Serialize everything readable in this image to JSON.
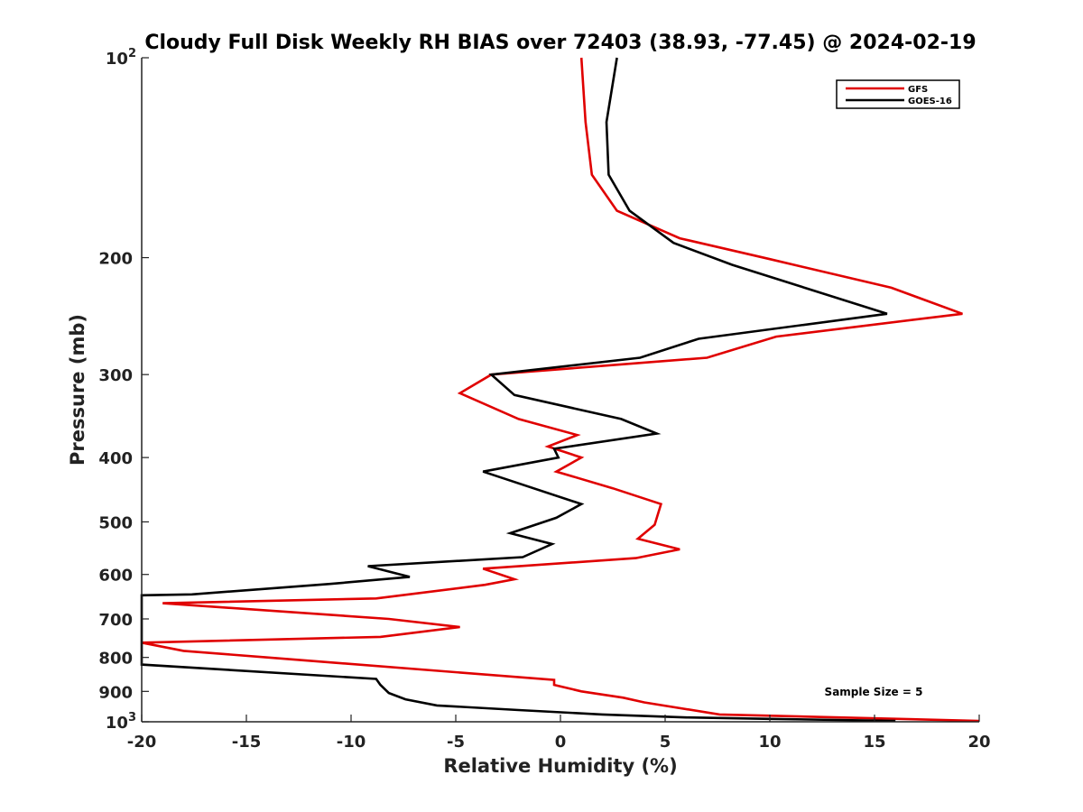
{
  "chart_data": {
    "type": "line",
    "title": "Cloudy Full Disk Weekly RH BIAS over 72403 (38.93, -77.45) @ 2024-02-19",
    "xlabel": "Relative Humidity (%)",
    "ylabel": "Pressure (mb)",
    "xlim": [
      -20,
      20
    ],
    "ylim": [
      100,
      1000
    ],
    "yscale": "log",
    "y_reversed": true,
    "x_ticks": [
      {
        "value": -20,
        "label": "-20"
      },
      {
        "value": -15,
        "label": "-15"
      },
      {
        "value": -10,
        "label": "-10"
      },
      {
        "value": -5,
        "label": "-5"
      },
      {
        "value": 0,
        "label": "0"
      },
      {
        "value": 5,
        "label": "5"
      },
      {
        "value": 10,
        "label": "10"
      },
      {
        "value": 15,
        "label": "15"
      },
      {
        "value": 20,
        "label": "20"
      }
    ],
    "y_ticks": [
      {
        "value": 100,
        "label": "10",
        "sup": "2"
      },
      {
        "value": 200,
        "label": "200"
      },
      {
        "value": 300,
        "label": "300"
      },
      {
        "value": 400,
        "label": "400"
      },
      {
        "value": 500,
        "label": "500"
      },
      {
        "value": 600,
        "label": "600"
      },
      {
        "value": 700,
        "label": "700"
      },
      {
        "value": 800,
        "label": "800"
      },
      {
        "value": 900,
        "label": "900"
      },
      {
        "value": 1000,
        "label": "10",
        "sup": "3"
      }
    ],
    "grid": false,
    "legend_position": "top-right",
    "annotation": "Sample Size = 5",
    "series": [
      {
        "name": "GFS",
        "color": "#e00000",
        "points": [
          [
            1.0,
            100
          ],
          [
            1.2,
            125
          ],
          [
            1.5,
            150
          ],
          [
            2.7,
            170
          ],
          [
            5.7,
            187
          ],
          [
            10.0,
            201
          ],
          [
            15.8,
            222
          ],
          [
            19.2,
            243
          ],
          [
            10.3,
            263
          ],
          [
            7.0,
            283
          ],
          [
            -3.3,
            300
          ],
          [
            -4.8,
            320
          ],
          [
            -2.0,
            350
          ],
          [
            0.8,
            370
          ],
          [
            -0.6,
            385
          ],
          [
            1.0,
            400
          ],
          [
            -0.2,
            420
          ],
          [
            2.5,
            445
          ],
          [
            4.8,
            470
          ],
          [
            4.5,
            505
          ],
          [
            3.7,
            530
          ],
          [
            5.7,
            550
          ],
          [
            3.6,
            567
          ],
          [
            -3.7,
            588
          ],
          [
            -2.2,
            610
          ],
          [
            -3.6,
            622
          ],
          [
            -8.8,
            652
          ],
          [
            -19.0,
            663
          ],
          [
            -8.2,
            700
          ],
          [
            -4.8,
            720
          ],
          [
            -8.6,
            745
          ],
          [
            -20.0,
            760
          ],
          [
            -18.0,
            782
          ],
          [
            -14.0,
            800
          ],
          [
            -0.3,
            865
          ],
          [
            -0.3,
            880
          ],
          [
            1.0,
            900
          ],
          [
            3.0,
            920
          ],
          [
            4.0,
            935
          ],
          [
            7.6,
            975
          ],
          [
            20.0,
            997
          ]
        ]
      },
      {
        "name": "GOES-16",
        "color": "#000000",
        "points": [
          [
            2.7,
            100
          ],
          [
            2.2,
            125
          ],
          [
            2.3,
            150
          ],
          [
            3.3,
            170
          ],
          [
            5.4,
            190
          ],
          [
            8.2,
            205
          ],
          [
            15.6,
            243
          ],
          [
            6.6,
            265
          ],
          [
            3.8,
            283
          ],
          [
            -3.3,
            300
          ],
          [
            -2.2,
            322
          ],
          [
            2.9,
            350
          ],
          [
            4.6,
            368
          ],
          [
            -0.3,
            388
          ],
          [
            -0.1,
            400
          ],
          [
            -3.7,
            420
          ],
          [
            1.0,
            470
          ],
          [
            -0.2,
            493
          ],
          [
            -2.4,
            520
          ],
          [
            -0.4,
            540
          ],
          [
            -1.8,
            565
          ],
          [
            -9.2,
            583
          ],
          [
            -7.2,
            605
          ],
          [
            -11.0,
            620
          ],
          [
            -17.6,
            643
          ],
          [
            -20.0,
            645
          ],
          [
            -20.0,
            820
          ],
          [
            -8.8,
            862
          ],
          [
            -8.6,
            880
          ],
          [
            -8.2,
            905
          ],
          [
            -7.4,
            925
          ],
          [
            -5.9,
            945
          ],
          [
            -2.0,
            960
          ],
          [
            2.0,
            975
          ],
          [
            6.0,
            985
          ],
          [
            10.0,
            990
          ],
          [
            16.0,
            997
          ]
        ]
      }
    ]
  }
}
